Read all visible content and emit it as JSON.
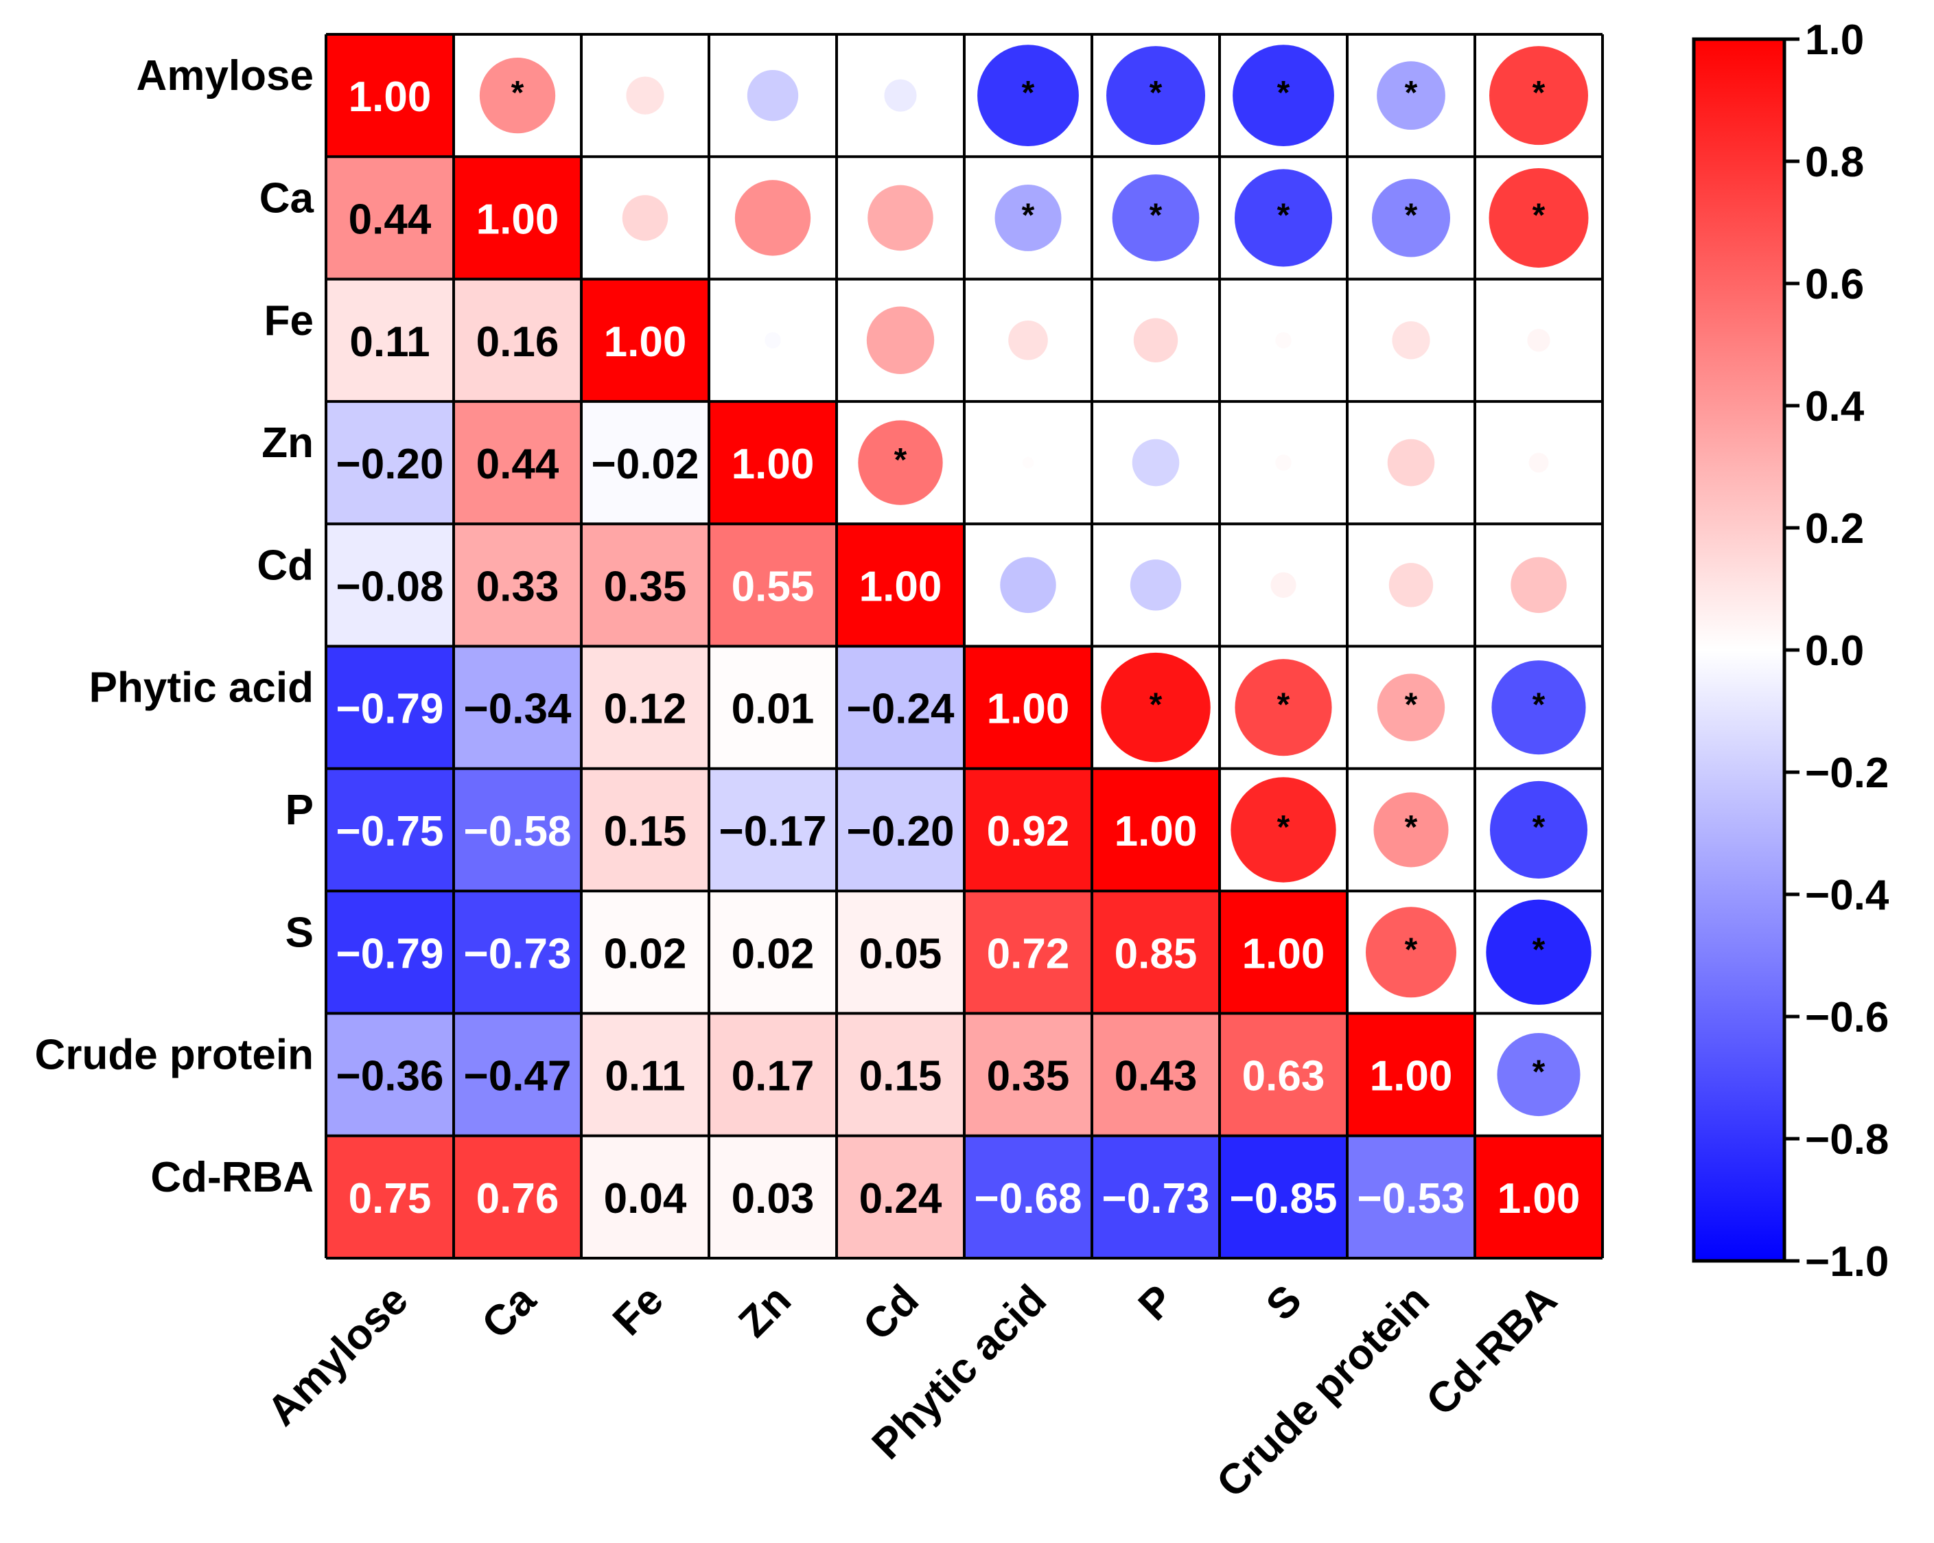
{
  "chart_data": {
    "type": "heatmap",
    "title": "",
    "variables": [
      "Amylose",
      "Ca",
      "Fe",
      "Zn",
      "Cd",
      "Phytic acid",
      "P",
      "S",
      "Crude protein",
      "Cd-RBA"
    ],
    "matrix": [
      [
        1.0,
        0.44,
        0.11,
        -0.2,
        -0.08,
        -0.79,
        -0.75,
        -0.79,
        -0.36,
        0.75
      ],
      [
        0.44,
        1.0,
        0.16,
        0.44,
        0.33,
        -0.34,
        -0.58,
        -0.73,
        -0.47,
        0.76
      ],
      [
        0.11,
        0.16,
        1.0,
        -0.02,
        0.35,
        0.12,
        0.15,
        0.02,
        0.11,
        0.04
      ],
      [
        -0.2,
        0.44,
        -0.02,
        1.0,
        0.55,
        0.01,
        -0.17,
        0.02,
        0.17,
        0.03
      ],
      [
        -0.08,
        0.33,
        0.35,
        0.55,
        1.0,
        -0.24,
        -0.2,
        0.05,
        0.15,
        0.24
      ],
      [
        -0.79,
        -0.34,
        0.12,
        0.01,
        -0.24,
        1.0,
        0.92,
        0.72,
        0.35,
        -0.68
      ],
      [
        -0.75,
        -0.58,
        0.15,
        -0.17,
        -0.2,
        0.92,
        1.0,
        0.85,
        0.43,
        -0.73
      ],
      [
        -0.79,
        -0.73,
        0.02,
        0.02,
        0.05,
        0.72,
        0.85,
        1.0,
        0.63,
        -0.85
      ],
      [
        -0.36,
        -0.47,
        0.11,
        0.17,
        0.15,
        0.35,
        0.43,
        0.63,
        1.0,
        -0.53
      ],
      [
        0.75,
        0.76,
        0.04,
        0.03,
        0.24,
        -0.68,
        -0.73,
        -0.85,
        -0.53,
        1.0
      ]
    ],
    "upper_triangle_display": "circles",
    "lower_triangle_display": "squares-with-values",
    "significance_marker": "*",
    "significant_pairs": [
      [
        "Amylose",
        "Ca"
      ],
      [
        "Amylose",
        "Phytic acid"
      ],
      [
        "Amylose",
        "P"
      ],
      [
        "Amylose",
        "S"
      ],
      [
        "Amylose",
        "Crude protein"
      ],
      [
        "Amylose",
        "Cd-RBA"
      ],
      [
        "Ca",
        "Phytic acid"
      ],
      [
        "Ca",
        "P"
      ],
      [
        "Ca",
        "S"
      ],
      [
        "Ca",
        "Crude protein"
      ],
      [
        "Ca",
        "Cd-RBA"
      ],
      [
        "Zn",
        "Cd"
      ],
      [
        "Phytic acid",
        "P"
      ],
      [
        "Phytic acid",
        "S"
      ],
      [
        "Phytic acid",
        "Crude protein"
      ],
      [
        "Phytic acid",
        "Cd-RBA"
      ],
      [
        "P",
        "S"
      ],
      [
        "P",
        "Crude protein"
      ],
      [
        "P",
        "Cd-RBA"
      ],
      [
        "S",
        "Crude protein"
      ],
      [
        "S",
        "Cd-RBA"
      ],
      [
        "Crude protein",
        "Cd-RBA"
      ]
    ],
    "colorbar": {
      "range": [
        -1.0,
        1.0
      ],
      "ticks": [
        "1.0",
        "0.8",
        "0.6",
        "0.4",
        "0.2",
        "0.0",
        "−0.2",
        "−0.4",
        "−0.6",
        "−0.8",
        "−1.0"
      ],
      "colors": {
        "negative": "#0000ff",
        "zero": "#ffffff",
        "positive": "#ff0000"
      }
    }
  }
}
